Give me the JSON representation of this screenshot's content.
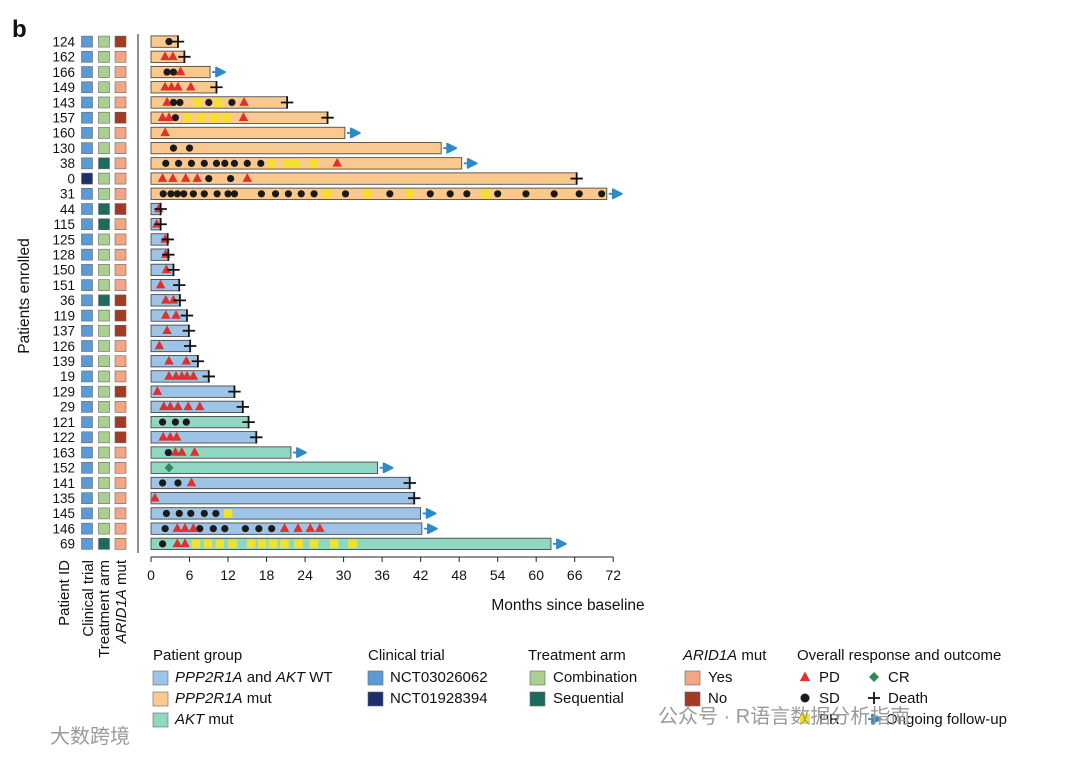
{
  "chart_data": {
    "type": "swimmer",
    "panel_label": "b",
    "ylabel": "Patients enrolled",
    "xlabel": "Months since baseline",
    "xlim": [
      0,
      72
    ],
    "xticks": [
      0,
      6,
      12,
      18,
      24,
      30,
      36,
      42,
      48,
      54,
      60,
      66,
      72
    ],
    "column_labels": {
      "patient_id": "Patient ID",
      "trial": "Clinical trial",
      "arm": "Treatment arm",
      "arid_prefix": "ARID1A",
      "arid_suffix": " mut"
    },
    "colors": {
      "group": {
        "wt": "#9dc3e6",
        "ppp": "#fbc98e",
        "akt": "#8fd6c3"
      },
      "trial": {
        "NCT03026062": "#5b9bd5",
        "NCT01928394": "#1f2f6b"
      },
      "arm": {
        "Combination": "#a9d08e",
        "Sequential": "#1e6b5c"
      },
      "arid": {
        "Yes": "#f4a582",
        "No": "#a33a24"
      },
      "PD": "#e0302d",
      "SD": "#1a1a1a",
      "PR": "#f5e12a",
      "CR": "#2e8b57",
      "arrow": "#2c8ac8"
    },
    "patients": [
      {
        "id": "124",
        "group": "ppp",
        "trial": "NCT03026062",
        "arm": "Combination",
        "arid": "No",
        "end": 4.2,
        "outcome": "death",
        "PD": [],
        "SD": [
          2.8
        ],
        "PR": [],
        "CR": []
      },
      {
        "id": "162",
        "group": "ppp",
        "trial": "NCT03026062",
        "arm": "Combination",
        "arid": "Yes",
        "end": 5.2,
        "outcome": "death",
        "PD": [
          2.2,
          3.4
        ],
        "SD": [],
        "PR": [],
        "CR": []
      },
      {
        "id": "166",
        "group": "ppp",
        "trial": "NCT03026062",
        "arm": "Combination",
        "arid": "Yes",
        "end": 9.2,
        "outcome": "ongoing",
        "PD": [
          4.6
        ],
        "SD": [
          2.5,
          3.5
        ],
        "PR": [],
        "CR": []
      },
      {
        "id": "149",
        "group": "ppp",
        "trial": "NCT03026062",
        "arm": "Combination",
        "arid": "Yes",
        "end": 10.2,
        "outcome": "death",
        "PD": [
          2.2,
          3.2,
          4.2,
          6.2
        ],
        "SD": [],
        "PR": [],
        "CR": []
      },
      {
        "id": "143",
        "group": "ppp",
        "trial": "NCT03026062",
        "arm": "Combination",
        "arid": "Yes",
        "end": 21.2,
        "outcome": "death",
        "PD": [
          2.5,
          14.5
        ],
        "SD": [
          3.5,
          4.5,
          9.0,
          12.6
        ],
        "PR": [
          7.2,
          10.4
        ],
        "CR": []
      },
      {
        "id": "157",
        "group": "ppp",
        "trial": "NCT03026062",
        "arm": "Combination",
        "arid": "No",
        "end": 27.5,
        "outcome": "death",
        "PD": [
          1.8,
          2.8,
          14.4
        ],
        "SD": [
          3.8
        ],
        "PR": [
          5.7,
          7.8,
          9.9,
          11.7
        ],
        "CR": []
      },
      {
        "id": "160",
        "group": "ppp",
        "trial": "NCT03026062",
        "arm": "Combination",
        "arid": "Yes",
        "end": 30.2,
        "outcome": "ongoing",
        "PD": [
          2.2
        ],
        "SD": [],
        "PR": [],
        "CR": []
      },
      {
        "id": "130",
        "group": "ppp",
        "trial": "NCT03026062",
        "arm": "Combination",
        "arid": "Yes",
        "end": 45.2,
        "outcome": "ongoing",
        "PD": [],
        "SD": [
          3.5,
          6.0
        ],
        "PR": [],
        "CR": []
      },
      {
        "id": "38",
        "group": "ppp",
        "trial": "NCT03026062",
        "arm": "Sequential",
        "arid": "Yes",
        "end": 48.4,
        "outcome": "ongoing",
        "PD": [
          29.0
        ],
        "SD": [
          2.3,
          4.3,
          6.3,
          8.3,
          10.2,
          11.5,
          13.0,
          15.0,
          17.1
        ],
        "PR": [
          18.8,
          21.2,
          22.4,
          25.4
        ],
        "CR": []
      },
      {
        "id": "0",
        "group": "ppp",
        "trial": "NCT01928394",
        "arm": "Combination",
        "arid": "Yes",
        "end": 66.3,
        "outcome": "death",
        "PD": [
          1.8,
          3.4,
          5.4,
          7.2,
          15.0
        ],
        "SD": [
          9.0,
          12.4
        ],
        "PR": [],
        "CR": []
      },
      {
        "id": "31",
        "group": "ppp",
        "trial": "NCT03026062",
        "arm": "Combination",
        "arid": "Yes",
        "end": 71.0,
        "outcome": "ongoing",
        "PD": [],
        "SD": [
          1.9,
          3.1,
          4.1,
          5.1,
          6.6,
          8.3,
          10.3,
          12.0,
          13.0,
          17.2,
          19.4,
          21.4,
          23.4,
          25.4,
          30.3,
          37.2,
          43.5,
          46.6,
          49.2,
          54.0,
          58.4,
          62.8,
          66.7,
          70.2
        ],
        "PR": [
          27.4,
          33.7,
          40.3,
          52.2
        ],
        "CR": []
      },
      {
        "id": "44",
        "group": "wt",
        "trial": "NCT03026062",
        "arm": "Sequential",
        "arid": "No",
        "end": 1.5,
        "outcome": "death",
        "PD": [
          1.2
        ],
        "SD": [],
        "PR": [],
        "CR": []
      },
      {
        "id": "115",
        "group": "wt",
        "trial": "NCT03026062",
        "arm": "Sequential",
        "arid": "Yes",
        "end": 1.5,
        "outcome": "death",
        "PD": [
          0.9
        ],
        "SD": [],
        "PR": [],
        "CR": []
      },
      {
        "id": "125",
        "group": "wt",
        "trial": "NCT03026062",
        "arm": "Combination",
        "arid": "Yes",
        "end": 2.6,
        "outcome": "death",
        "PD": [
          2.2
        ],
        "SD": [],
        "PR": [],
        "CR": []
      },
      {
        "id": "128",
        "group": "wt",
        "trial": "NCT03026062",
        "arm": "Combination",
        "arid": "Yes",
        "end": 2.7,
        "outcome": "death",
        "PD": [
          2.3
        ],
        "SD": [],
        "PR": [],
        "CR": []
      },
      {
        "id": "150",
        "group": "wt",
        "trial": "NCT03026062",
        "arm": "Combination",
        "arid": "Yes",
        "end": 3.5,
        "outcome": "death",
        "PD": [
          2.4
        ],
        "SD": [],
        "PR": [],
        "CR": []
      },
      {
        "id": "151",
        "group": "wt",
        "trial": "NCT03026062",
        "arm": "Combination",
        "arid": "Yes",
        "end": 4.4,
        "outcome": "death",
        "PD": [
          1.5
        ],
        "SD": [],
        "PR": [],
        "CR": []
      },
      {
        "id": "36",
        "group": "wt",
        "trial": "NCT03026062",
        "arm": "Sequential",
        "arid": "No",
        "end": 4.5,
        "outcome": "death",
        "PD": [
          2.3,
          3.5
        ],
        "SD": [],
        "PR": [],
        "CR": []
      },
      {
        "id": "119",
        "group": "wt",
        "trial": "NCT03026062",
        "arm": "Combination",
        "arid": "No",
        "end": 5.6,
        "outcome": "death",
        "PD": [
          2.3,
          3.9
        ],
        "SD": [],
        "PR": [],
        "CR": []
      },
      {
        "id": "137",
        "group": "wt",
        "trial": "NCT03026062",
        "arm": "Combination",
        "arid": "No",
        "end": 5.9,
        "outcome": "death",
        "PD": [
          2.5
        ],
        "SD": [],
        "PR": [],
        "CR": []
      },
      {
        "id": "126",
        "group": "wt",
        "trial": "NCT03026062",
        "arm": "Combination",
        "arid": "Yes",
        "end": 6.1,
        "outcome": "death",
        "PD": [
          1.3
        ],
        "SD": [],
        "PR": [],
        "CR": []
      },
      {
        "id": "139",
        "group": "wt",
        "trial": "NCT03026062",
        "arm": "Combination",
        "arid": "Yes",
        "end": 7.3,
        "outcome": "death",
        "PD": [
          2.8,
          5.5
        ],
        "SD": [],
        "PR": [],
        "CR": []
      },
      {
        "id": "19",
        "group": "wt",
        "trial": "NCT03026062",
        "arm": "Combination",
        "arid": "Yes",
        "end": 9.0,
        "outcome": "death",
        "PD": [
          2.8,
          3.9,
          4.8,
          5.6,
          6.6
        ],
        "SD": [],
        "PR": [],
        "CR": []
      },
      {
        "id": "129",
        "group": "wt",
        "trial": "NCT03026062",
        "arm": "Combination",
        "arid": "No",
        "end": 13.0,
        "outcome": "death",
        "PD": [
          1.0
        ],
        "SD": [],
        "PR": [],
        "CR": []
      },
      {
        "id": "29",
        "group": "wt",
        "trial": "NCT03026062",
        "arm": "Combination",
        "arid": "Yes",
        "end": 14.3,
        "outcome": "death",
        "PD": [
          2.0,
          3.0,
          4.2,
          5.8,
          7.6
        ],
        "SD": [],
        "PR": [],
        "CR": []
      },
      {
        "id": "121",
        "group": "akt",
        "trial": "NCT03026062",
        "arm": "Combination",
        "arid": "No",
        "end": 15.2,
        "outcome": "death",
        "PD": [],
        "SD": [
          1.8,
          3.8,
          5.5
        ],
        "PR": [],
        "CR": []
      },
      {
        "id": "122",
        "group": "wt",
        "trial": "NCT03026062",
        "arm": "Combination",
        "arid": "No",
        "end": 16.4,
        "outcome": "death",
        "PD": [
          1.9,
          3.0,
          4.0
        ],
        "SD": [],
        "PR": [],
        "CR": []
      },
      {
        "id": "163",
        "group": "akt",
        "trial": "NCT03026062",
        "arm": "Combination",
        "arid": "Yes",
        "end": 21.8,
        "outcome": "ongoing",
        "PD": [
          3.8,
          4.8,
          6.8
        ],
        "SD": [
          2.7
        ],
        "PR": [],
        "CR": []
      },
      {
        "id": "152",
        "group": "akt",
        "trial": "NCT03026062",
        "arm": "Combination",
        "arid": "Yes",
        "end": 35.3,
        "outcome": "ongoing",
        "PD": [],
        "SD": [],
        "PR": [],
        "CR": [
          2.8
        ]
      },
      {
        "id": "141",
        "group": "wt",
        "trial": "NCT03026062",
        "arm": "Combination",
        "arid": "Yes",
        "end": 40.3,
        "outcome": "death",
        "PD": [
          6.3
        ],
        "SD": [
          1.8,
          4.2
        ],
        "PR": [],
        "CR": []
      },
      {
        "id": "135",
        "group": "wt",
        "trial": "NCT03026062",
        "arm": "Combination",
        "arid": "Yes",
        "end": 41.0,
        "outcome": "death",
        "PD": [
          0.6
        ],
        "SD": [],
        "PR": [],
        "CR": []
      },
      {
        "id": "145",
        "group": "wt",
        "trial": "NCT03026062",
        "arm": "Combination",
        "arid": "Yes",
        "end": 42.0,
        "outcome": "ongoing",
        "PD": [],
        "SD": [
          2.4,
          4.4,
          6.2,
          8.3,
          10.1
        ],
        "PR": [
          12.0
        ],
        "CR": []
      },
      {
        "id": "146",
        "group": "wt",
        "trial": "NCT03026062",
        "arm": "Combination",
        "arid": "Yes",
        "end": 42.2,
        "outcome": "ongoing",
        "PD": [
          4.1,
          5.3,
          6.6,
          20.8,
          22.9,
          24.8,
          26.3
        ],
        "SD": [
          2.2,
          7.6,
          9.7,
          11.5,
          14.7,
          16.8,
          18.8
        ],
        "PR": [],
        "CR": []
      },
      {
        "id": "69",
        "group": "akt",
        "trial": "NCT03026062",
        "arm": "Sequential",
        "arid": "Yes",
        "end": 62.3,
        "outcome": "ongoing",
        "PD": [
          4.1,
          5.3
        ],
        "SD": [
          1.8
        ],
        "PR": [
          7.0,
          8.9,
          10.7,
          12.7,
          15.6,
          17.3,
          19.0,
          20.8,
          23.0,
          25.4,
          28.5,
          31.4
        ],
        "CR": []
      }
    ],
    "legend": {
      "patient_group": {
        "title": "Patient group",
        "items": [
          {
            "key": "wt",
            "parts": [
              [
                "PPP2R1A",
                true
              ],
              [
                " and ",
                false
              ],
              [
                "AKT",
                true
              ],
              [
                " WT",
                false
              ]
            ]
          },
          {
            "key": "ppp",
            "parts": [
              [
                "PPP2R1A",
                true
              ],
              [
                " mut",
                false
              ]
            ]
          },
          {
            "key": "akt",
            "parts": [
              [
                "AKT",
                true
              ],
              [
                " mut",
                false
              ]
            ]
          }
        ]
      },
      "clinical_trial": {
        "title": "Clinical trial",
        "items": [
          "NCT03026062",
          "NCT01928394"
        ]
      },
      "treatment_arm": {
        "title": "Treatment arm",
        "items": [
          "Combination",
          "Sequential"
        ]
      },
      "arid1a": {
        "title_italic": "ARID1A",
        "title_rest": " mut",
        "items": [
          "Yes",
          "No"
        ]
      },
      "response": {
        "title": "Overall response and outcome",
        "items": [
          {
            "key": "PD",
            "label": "PD"
          },
          {
            "key": "CR",
            "label": "CR"
          },
          {
            "key": "SD",
            "label": "SD"
          },
          {
            "key": "death",
            "label": "Death"
          },
          {
            "key": "PR",
            "label": "PR"
          },
          {
            "key": "arrow",
            "label": "Ongoing follow-up"
          }
        ]
      }
    }
  },
  "watermarks": {
    "left": "大数跨境",
    "right": "公众号 · R语言数据分析指南"
  }
}
